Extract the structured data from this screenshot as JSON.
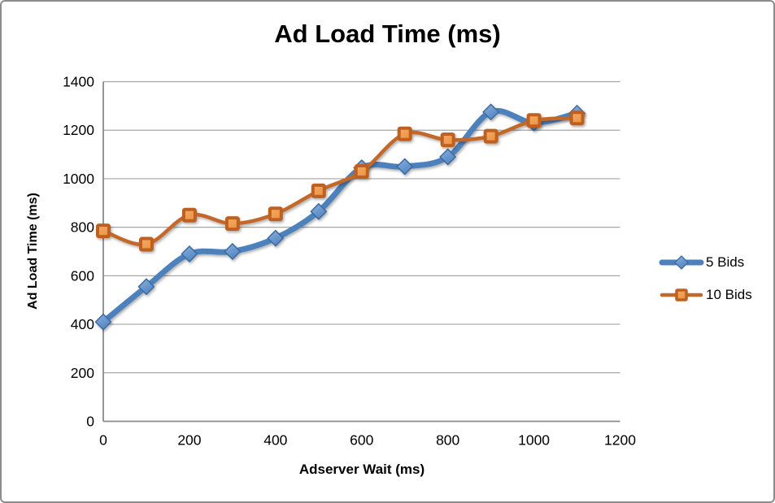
{
  "chart_data": {
    "type": "line",
    "title": "Ad Load Time (ms)",
    "xlabel": "Adserver Wait (ms)",
    "ylabel": "Ad Load Time (ms)",
    "x": [
      0,
      100,
      200,
      300,
      400,
      500,
      600,
      700,
      800,
      900,
      1000,
      1100
    ],
    "xlim": [
      0,
      1200
    ],
    "ylim": [
      0,
      1400
    ],
    "x_ticks": [
      0,
      200,
      400,
      600,
      800,
      1000,
      1200
    ],
    "y_ticks": [
      0,
      200,
      400,
      600,
      800,
      1000,
      1200,
      1400
    ],
    "grid": "horizontal",
    "smooth_lines": true,
    "legend_position": "right",
    "colors": {
      "gridline": "#a6a6a6",
      "axis": "#8a8a8a",
      "text": "#000000"
    },
    "series": [
      {
        "name": "5 Bids",
        "marker": "diamond",
        "line_color": "#4e81bc",
        "marker_fill_light": "#8ab1e0",
        "marker_fill_dark": "#5185c2",
        "marker_stroke": "#3a679c",
        "line_width": 7,
        "values": [
          410,
          555,
          690,
          700,
          755,
          865,
          1045,
          1050,
          1090,
          1275,
          1230,
          1270
        ]
      },
      {
        "name": "10 Bids",
        "marker": "square",
        "line_color": "#c1682c",
        "marker_fill_light": "#f4ab66",
        "marker_fill_dark": "#ed9645",
        "marker_stroke": "#bd6120",
        "line_width": 4.5,
        "values": [
          785,
          730,
          850,
          815,
          855,
          950,
          1030,
          1185,
          1160,
          1175,
          1240,
          1250
        ]
      }
    ]
  }
}
